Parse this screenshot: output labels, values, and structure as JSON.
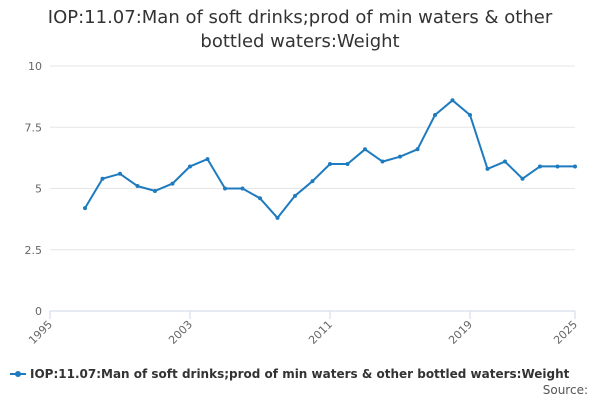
{
  "colors": {
    "series": "#1f7bbf",
    "grid": "#e6e6e6",
    "axis": "#ccd6eb"
  },
  "source_label": "Source:",
  "chart_data": {
    "type": "line",
    "title": "IOP:11.07:Man of soft drinks;prod of min waters & other bottled waters:Weight",
    "xlabel": "",
    "ylabel": "",
    "xlim": [
      1995,
      2025
    ],
    "ylim": [
      0,
      10
    ],
    "x_ticks": [
      "1995",
      "2003",
      "2011",
      "2019",
      "2025"
    ],
    "y_ticks": [
      "0",
      "2.5",
      "5",
      "7.5",
      "10"
    ],
    "grid": true,
    "legend_position": "bottom-left",
    "series": [
      {
        "name": "IOP:11.07:Man of soft drinks;prod of min waters & other bottled waters:Weight",
        "x": [
          1997,
          1998,
          1999,
          2000,
          2001,
          2002,
          2003,
          2004,
          2005,
          2006,
          2007,
          2008,
          2009,
          2010,
          2011,
          2012,
          2013,
          2014,
          2015,
          2016,
          2017,
          2018,
          2019,
          2020,
          2021,
          2022,
          2023,
          2024,
          2025
        ],
        "values": [
          4.2,
          5.4,
          5.6,
          5.1,
          4.9,
          5.2,
          5.9,
          6.2,
          5.0,
          5.0,
          4.6,
          3.8,
          4.7,
          5.3,
          6.0,
          6.0,
          6.6,
          6.1,
          6.3,
          6.6,
          8.0,
          8.6,
          8.0,
          5.8,
          6.1,
          5.4,
          5.9,
          5.9,
          5.9
        ]
      }
    ]
  }
}
